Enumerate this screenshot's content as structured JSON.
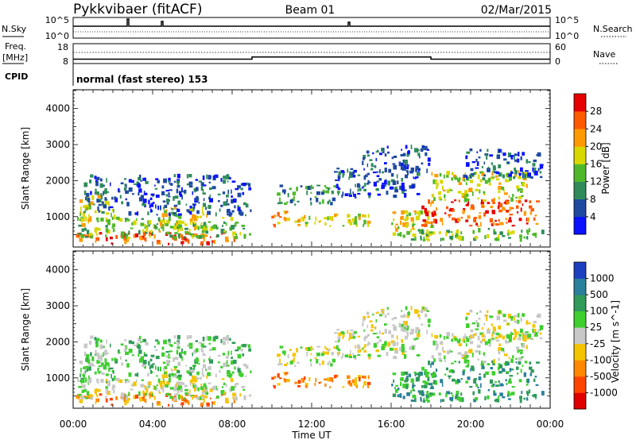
{
  "header": {
    "station": "Pykkvibaer (fitACF)",
    "beam": "Beam 01",
    "date": "02/Mar/2015"
  },
  "noise_panel": {
    "left_label": "N.Sky",
    "right_label": "N.Search",
    "left_ticks": [
      "10^5",
      "10^0"
    ],
    "right_ticks": [
      "10^5",
      "10^0"
    ]
  },
  "freq_panel": {
    "left_label_line1": "Freq.",
    "left_label_line2": "[MHz]",
    "left_ticks": [
      "18",
      "8"
    ],
    "right_label": "Nave",
    "right_ticks": [
      "60",
      "0"
    ],
    "freq_steps": [
      {
        "t_start": 0,
        "t_end": 9,
        "freq": 10.2
      },
      {
        "t_start": 9,
        "t_end": 18,
        "freq": 11.3
      },
      {
        "t_start": 18,
        "t_end": 24,
        "freq": 10.2
      }
    ]
  },
  "cpid": {
    "label": "CPID",
    "text": "normal (fast stereo) 153"
  },
  "x_axis": {
    "label": "Time UT",
    "ticks": [
      "00:00",
      "04:00",
      "08:00",
      "12:00",
      "16:00",
      "20:00",
      "00:00"
    ]
  },
  "power_panel": {
    "ylabel": "Slant Range [km]",
    "yticks": [
      "1000",
      "2000",
      "3000",
      "4000"
    ],
    "colorbar_label": "Power [dB]",
    "colorbar_ticks": [
      "4",
      "8",
      "12",
      "16",
      "20",
      "24",
      "28"
    ],
    "colors": [
      "#0a12ff",
      "#1e4aa0",
      "#2f8c5a",
      "#4fb82a",
      "#d8d800",
      "#ff9a00",
      "#ff5a00",
      "#e60000"
    ]
  },
  "velocity_panel": {
    "ylabel": "Slant Range [km]",
    "yticks": [
      "1000",
      "2000",
      "3000",
      "4000"
    ],
    "colorbar_label": "Velocity [m s^-1]",
    "colorbar_ticks": [
      "1000",
      "500",
      "100",
      "25",
      "-25",
      "-100",
      "-500",
      "-1000"
    ],
    "colors": [
      "#1c3fc0",
      "#2a7f9a",
      "#2f9a5a",
      "#3fcf2f",
      "#c8c8c8",
      "#f5c400",
      "#ff8800",
      "#ff4400",
      "#e00000"
    ]
  },
  "chart_data": {
    "type": "heatmap",
    "x_unit": "hours UT",
    "xlim": [
      0,
      24
    ],
    "ylim": [
      180,
      4500
    ],
    "series": [
      {
        "name": "Power",
        "blobs": [
          {
            "t0": 0.1,
            "t1": 8.2,
            "r0": 200,
            "r1": 600,
            "level": 6
          },
          {
            "t0": 0.2,
            "t1": 9.0,
            "r0": 350,
            "r1": 1000,
            "level": 3
          },
          {
            "t0": 0.3,
            "t1": 2.2,
            "r0": 700,
            "r1": 1700,
            "level": 4
          },
          {
            "t0": 4.3,
            "t1": 6.8,
            "r0": 500,
            "r1": 1300,
            "level": 4
          },
          {
            "t0": 0.5,
            "t1": 9.0,
            "r0": 1000,
            "r1": 2200,
            "level": 1
          },
          {
            "t0": 9.9,
            "t1": 11.0,
            "r0": 700,
            "r1": 1200,
            "level": 5
          },
          {
            "t0": 10.2,
            "t1": 13.5,
            "r0": 1300,
            "r1": 1900,
            "level": 2
          },
          {
            "t0": 11.0,
            "t1": 15.0,
            "r0": 700,
            "r1": 1100,
            "level": 4
          },
          {
            "t0": 13.0,
            "t1": 17.5,
            "r0": 1500,
            "r1": 2400,
            "level": 1
          },
          {
            "t0": 14.5,
            "t1": 18.0,
            "r0": 2200,
            "r1": 3000,
            "level": 1
          },
          {
            "t0": 16.0,
            "t1": 18.5,
            "r0": 400,
            "r1": 1200,
            "level": 4
          },
          {
            "t0": 17.5,
            "t1": 23.5,
            "r0": 700,
            "r1": 1500,
            "level": 6
          },
          {
            "t0": 18.0,
            "t1": 23.0,
            "r0": 1400,
            "r1": 2300,
            "level": 4
          },
          {
            "t0": 19.5,
            "t1": 23.7,
            "r0": 2000,
            "r1": 2900,
            "level": 1
          },
          {
            "t0": 16.8,
            "t1": 23.8,
            "r0": 300,
            "r1": 700,
            "level": 3
          }
        ]
      },
      {
        "name": "Velocity",
        "blobs": [
          {
            "t0": 0.1,
            "t1": 8.2,
            "r0": 200,
            "r1": 600,
            "level": 6
          },
          {
            "t0": 0.2,
            "t1": 9.0,
            "r0": 350,
            "r1": 1000,
            "level": 4
          },
          {
            "t0": 0.3,
            "t1": 2.2,
            "r0": 700,
            "r1": 1700,
            "level": 3
          },
          {
            "t0": 4.3,
            "t1": 6.8,
            "r0": 500,
            "r1": 1300,
            "level": 4
          },
          {
            "t0": 0.5,
            "t1": 9.0,
            "r0": 1000,
            "r1": 2200,
            "level": 3
          },
          {
            "t0": 9.9,
            "t1": 11.0,
            "r0": 700,
            "r1": 1200,
            "level": 6
          },
          {
            "t0": 10.2,
            "t1": 13.5,
            "r0": 1300,
            "r1": 1900,
            "level": 4
          },
          {
            "t0": 11.0,
            "t1": 15.0,
            "r0": 700,
            "r1": 1100,
            "level": 6
          },
          {
            "t0": 13.0,
            "t1": 17.5,
            "r0": 1500,
            "r1": 2400,
            "level": 4
          },
          {
            "t0": 14.5,
            "t1": 18.0,
            "r0": 2200,
            "r1": 3000,
            "level": 4
          },
          {
            "t0": 16.0,
            "t1": 18.5,
            "r0": 400,
            "r1": 1200,
            "level": 2
          },
          {
            "t0": 17.5,
            "t1": 23.5,
            "r0": 700,
            "r1": 1500,
            "level": 2
          },
          {
            "t0": 18.0,
            "t1": 23.0,
            "r0": 1400,
            "r1": 2300,
            "level": 4
          },
          {
            "t0": 19.5,
            "t1": 23.7,
            "r0": 2000,
            "r1": 2900,
            "level": 4
          },
          {
            "t0": 16.8,
            "t1": 23.8,
            "r0": 300,
            "r1": 700,
            "level": 2
          }
        ]
      }
    ]
  }
}
